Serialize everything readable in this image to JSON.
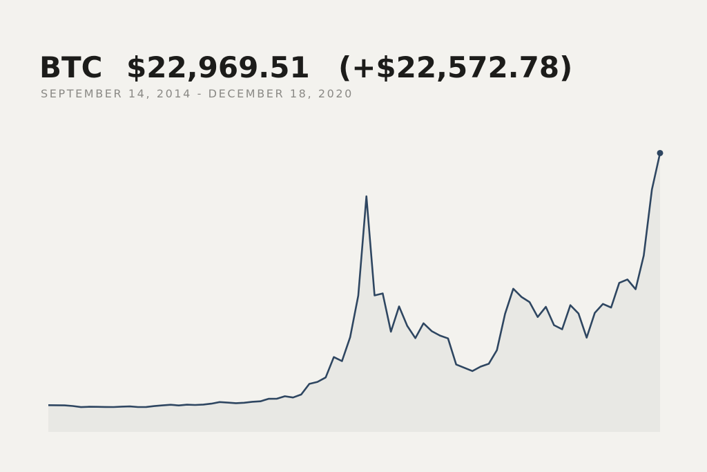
{
  "chart_data": {
    "type": "area-line",
    "title": {
      "symbol": "BTC",
      "price": "$22,969.51",
      "change": "(+$22,572.78)"
    },
    "subtitle": "SEPTEMBER 14, 2014 - DECEMBER 18, 2020",
    "values": [
      396.73,
      390,
      375,
      320,
      220,
      254,
      244,
      236,
      230,
      263,
      284,
      230,
      236,
      314,
      377,
      430,
      368,
      437,
      416,
      448,
      531,
      673,
      624,
      573,
      609,
      700,
      742,
      963,
      970,
      1190,
      1080,
      1348,
      2300,
      2480,
      2875,
      4700,
      4340,
      6470,
      10200,
      19100,
      10220,
      10400,
      6970,
      9240,
      7500,
      6400,
      7730,
      7030,
      6630,
      6370,
      4040,
      3740,
      3450,
      3850,
      4100,
      5320,
      8570,
      10820,
      10090,
      9630,
      8290,
      9200,
      7560,
      7190,
      9350,
      8600,
      6440,
      8660,
      9460,
      9140,
      11350,
      11650,
      10780,
      13800,
      19700,
      22969.51
    ],
    "ylim": [
      -2000,
      23000
    ],
    "color": "#2e4661",
    "fill": "#e8e8e4"
  }
}
